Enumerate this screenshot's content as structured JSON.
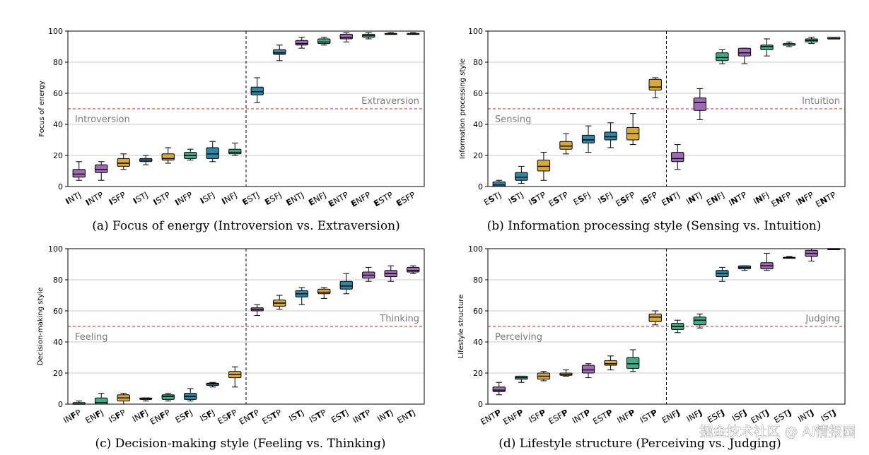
{
  "colors": {
    "Purple": "#9f6bb7",
    "Blue": "#2f86a2",
    "Gold": "#d9a938",
    "Green": "#3fae87",
    "threshold": "#e02020"
  },
  "watermark": "掘金技术社区 @ AI情报园",
  "chart_data": [
    {
      "type": "boxplot",
      "caption": "(a) Focus of energy (Introversion vs. Extraversion)",
      "ylabel": "Focus of energy",
      "ylim": [
        0,
        100
      ],
      "yticks": [
        0,
        20,
        40,
        60,
        80,
        100
      ],
      "grid": true,
      "threshold": 50,
      "low_label": "Introversion",
      "high_label": "Extraversion",
      "divider_after": 8,
      "bold_index": 0,
      "boxes": [
        {
          "label": "INTJ",
          "color": "Purple",
          "whislo": 4,
          "q1": 6,
          "med": 8,
          "q3": 11,
          "whishi": 16
        },
        {
          "label": "INTP",
          "color": "Purple",
          "whislo": 4,
          "q1": 9,
          "med": 11,
          "q3": 14,
          "whishi": 16
        },
        {
          "label": "ISFP",
          "color": "Gold",
          "whislo": 11,
          "q1": 13,
          "med": 15,
          "q3": 18,
          "whishi": 21
        },
        {
          "label": "ISTJ",
          "color": "Blue",
          "whislo": 14,
          "q1": 16,
          "med": 17,
          "q3": 18,
          "whishi": 20
        },
        {
          "label": "ISTP",
          "color": "Gold",
          "whislo": 15,
          "q1": 17,
          "med": 18,
          "q3": 21,
          "whishi": 25
        },
        {
          "label": "INFP",
          "color": "Green",
          "whislo": 17,
          "q1": 18,
          "med": 20,
          "q3": 22,
          "whishi": 24
        },
        {
          "label": "ISFJ",
          "color": "Blue",
          "whislo": 16,
          "q1": 18,
          "med": 21,
          "q3": 25,
          "whishi": 29
        },
        {
          "label": "INFJ",
          "color": "Green",
          "whislo": 20,
          "q1": 21,
          "med": 22,
          "q3": 24,
          "whishi": 28
        },
        {
          "label": "ESTJ",
          "color": "Blue",
          "whislo": 54,
          "q1": 59,
          "med": 61,
          "q3": 64,
          "whishi": 70
        },
        {
          "label": "ESFJ",
          "color": "Blue",
          "whislo": 81,
          "q1": 85,
          "med": 86,
          "q3": 88,
          "whishi": 91
        },
        {
          "label": "ENTJ",
          "color": "Purple",
          "whislo": 89,
          "q1": 91,
          "med": 92,
          "q3": 94,
          "whishi": 96
        },
        {
          "label": "ENFJ",
          "color": "Green",
          "whislo": 91,
          "q1": 92,
          "med": 93,
          "q3": 95,
          "whishi": 96
        },
        {
          "label": "ENTP",
          "color": "Purple",
          "whislo": 93,
          "q1": 95,
          "med": 96,
          "q3": 98,
          "whishi": 99
        },
        {
          "label": "ENFP",
          "color": "Green",
          "whislo": 95,
          "q1": 96,
          "med": 97,
          "q3": 98,
          "whishi": 99
        },
        {
          "label": "ESTP",
          "color": "Gold",
          "whislo": 98,
          "q1": 98,
          "med": 98,
          "q3": 98.5,
          "whishi": 99
        },
        {
          "label": "ESFP",
          "color": "Gold",
          "whislo": 98,
          "q1": 98,
          "med": 98,
          "q3": 98.5,
          "whishi": 99
        }
      ]
    },
    {
      "type": "boxplot",
      "caption": "(b) Information processing style (Sensing vs. Intuition)",
      "ylabel": "Information processing style",
      "ylim": [
        0,
        100
      ],
      "yticks": [
        0,
        20,
        40,
        60,
        80,
        100
      ],
      "grid": true,
      "threshold": 50,
      "low_label": "Sensing",
      "high_label": "Intuition",
      "divider_after": 8,
      "bold_index": 1,
      "boxes": [
        {
          "label": "ESTJ",
          "color": "Blue",
          "whislo": 0,
          "q1": 0,
          "med": 1,
          "q3": 3,
          "whishi": 4
        },
        {
          "label": "ISTJ",
          "color": "Blue",
          "whislo": 2,
          "q1": 4,
          "med": 6,
          "q3": 9,
          "whishi": 13
        },
        {
          "label": "ISTP",
          "color": "Gold",
          "whislo": 4,
          "q1": 10,
          "med": 13,
          "q3": 17,
          "whishi": 22
        },
        {
          "label": "ESTP",
          "color": "Gold",
          "whislo": 21,
          "q1": 24,
          "med": 26,
          "q3": 29,
          "whishi": 34
        },
        {
          "label": "ESFJ",
          "color": "Blue",
          "whislo": 22,
          "q1": 28,
          "med": 30,
          "q3": 33,
          "whishi": 39
        },
        {
          "label": "ISFJ",
          "color": "Blue",
          "whislo": 25,
          "q1": 30,
          "med": 32,
          "q3": 35,
          "whishi": 41
        },
        {
          "label": "ESFP",
          "color": "Gold",
          "whislo": 27,
          "q1": 30,
          "med": 34,
          "q3": 38,
          "whishi": 47
        },
        {
          "label": "ISFP",
          "color": "Gold",
          "whislo": 57,
          "q1": 62,
          "med": 64,
          "q3": 69,
          "whishi": 70
        },
        {
          "label": "ENTJ",
          "color": "Purple",
          "whislo": 11,
          "q1": 16,
          "med": 18,
          "q3": 22,
          "whishi": 27
        },
        {
          "label": "INTJ",
          "color": "Purple",
          "whislo": 43,
          "q1": 49,
          "med": 54,
          "q3": 57,
          "whishi": 63
        },
        {
          "label": "ENFJ",
          "color": "Green",
          "whislo": 79,
          "q1": 81,
          "med": 83,
          "q3": 86,
          "whishi": 88
        },
        {
          "label": "INTP",
          "color": "Purple",
          "whislo": 79,
          "q1": 84,
          "med": 86,
          "q3": 89,
          "whishi": 89
        },
        {
          "label": "INFJ",
          "color": "Green",
          "whislo": 84,
          "q1": 88,
          "med": 90,
          "q3": 91,
          "whishi": 95
        },
        {
          "label": "ENFP",
          "color": "Green",
          "whislo": 90,
          "q1": 91,
          "med": 91,
          "q3": 92,
          "whishi": 93
        },
        {
          "label": "INFP",
          "color": "Green",
          "whislo": 92,
          "q1": 93,
          "med": 94,
          "q3": 95,
          "whishi": 96
        },
        {
          "label": "ENTP",
          "color": "Purple",
          "whislo": 95,
          "q1": 95,
          "med": 95,
          "q3": 96,
          "whishi": 96
        }
      ]
    },
    {
      "type": "boxplot",
      "caption": "(c) Decision-making style (Feeling vs. Thinking)",
      "ylabel": "Decision-making style",
      "ylim": [
        0,
        100
      ],
      "yticks": [
        0,
        20,
        40,
        60,
        80,
        100
      ],
      "grid": true,
      "threshold": 50,
      "low_label": "Feeling",
      "high_label": "Thinking",
      "divider_after": 8,
      "bold_index": 2,
      "boxes": [
        {
          "label": "INFP",
          "color": "Green",
          "whislo": 0,
          "q1": 0,
          "med": 0,
          "q3": 1,
          "whishi": 2
        },
        {
          "label": "ENFJ",
          "color": "Green",
          "whislo": 0,
          "q1": 0,
          "med": 1,
          "q3": 4,
          "whishi": 7
        },
        {
          "label": "ISFP",
          "color": "Gold",
          "whislo": 0,
          "q1": 2,
          "med": 4,
          "q3": 6,
          "whishi": 7
        },
        {
          "label": "INFJ",
          "color": "Green",
          "whislo": 2,
          "q1": 3,
          "med": 3.5,
          "q3": 4,
          "whishi": 4
        },
        {
          "label": "ENFP",
          "color": "Green",
          "whislo": 2,
          "q1": 3,
          "med": 5,
          "q3": 6,
          "whishi": 7
        },
        {
          "label": "ESFJ",
          "color": "Blue",
          "whislo": 2,
          "q1": 3,
          "med": 5,
          "q3": 7,
          "whishi": 10
        },
        {
          "label": "ISFJ",
          "color": "Blue",
          "whislo": 11,
          "q1": 12,
          "med": 13,
          "q3": 13.5,
          "whishi": 14
        },
        {
          "label": "ESFP",
          "color": "Gold",
          "whislo": 11,
          "q1": 17,
          "med": 19,
          "q3": 21,
          "whishi": 24
        },
        {
          "label": "ENTP",
          "color": "Purple",
          "whislo": 57,
          "q1": 60,
          "med": 61,
          "q3": 62,
          "whishi": 64
        },
        {
          "label": "ESTP",
          "color": "Gold",
          "whislo": 61,
          "q1": 63,
          "med": 65,
          "q3": 67,
          "whishi": 70
        },
        {
          "label": "ISTJ",
          "color": "Blue",
          "whislo": 64,
          "q1": 69,
          "med": 71,
          "q3": 73,
          "whishi": 75
        },
        {
          "label": "ISTP",
          "color": "Gold",
          "whislo": 68,
          "q1": 71,
          "med": 72,
          "q3": 74,
          "whishi": 75
        },
        {
          "label": "ESTJ",
          "color": "Blue",
          "whislo": 71,
          "q1": 74,
          "med": 76,
          "q3": 79,
          "whishi": 84
        },
        {
          "label": "INTP",
          "color": "Purple",
          "whislo": 79,
          "q1": 81,
          "med": 83,
          "q3": 85,
          "whishi": 88
        },
        {
          "label": "INTJ",
          "color": "Purple",
          "whislo": 79,
          "q1": 82,
          "med": 84,
          "q3": 86,
          "whishi": 89
        },
        {
          "label": "ENTJ",
          "color": "Purple",
          "whislo": 84,
          "q1": 85,
          "med": 86,
          "q3": 88,
          "whishi": 89
        }
      ]
    },
    {
      "type": "boxplot",
      "caption": "(d) Lifestyle structure (Perceiving vs. Judging)",
      "ylabel": "Lifestyle structure",
      "ylim": [
        0,
        100
      ],
      "yticks": [
        0,
        20,
        40,
        60,
        80,
        100
      ],
      "grid": true,
      "threshold": 50,
      "low_label": "Perceiving",
      "high_label": "Judging",
      "divider_after": 8,
      "bold_index": 3,
      "boxes": [
        {
          "label": "ENTP",
          "color": "Purple",
          "whislo": 6,
          "q1": 8,
          "med": 9,
          "q3": 11,
          "whishi": 14
        },
        {
          "label": "ENFP",
          "color": "Green",
          "whislo": 14,
          "q1": 16,
          "med": 17,
          "q3": 18,
          "whishi": 18
        },
        {
          "label": "ISFP",
          "color": "Gold",
          "whislo": 15,
          "q1": 16,
          "med": 18,
          "q3": 20,
          "whishi": 21
        },
        {
          "label": "ESFP",
          "color": "Gold",
          "whislo": 18,
          "q1": 18.5,
          "med": 19,
          "q3": 20,
          "whishi": 22
        },
        {
          "label": "INTP",
          "color": "Purple",
          "whislo": 17,
          "q1": 20,
          "med": 22,
          "q3": 25,
          "whishi": 26
        },
        {
          "label": "ESTP",
          "color": "Gold",
          "whislo": 22,
          "q1": 25,
          "med": 26,
          "q3": 28,
          "whishi": 31
        },
        {
          "label": "INFP",
          "color": "Green",
          "whislo": 21,
          "q1": 23,
          "med": 26,
          "q3": 30,
          "whishi": 35
        },
        {
          "label": "ISTP",
          "color": "Gold",
          "whislo": 51,
          "q1": 53,
          "med": 56,
          "q3": 58,
          "whishi": 60
        },
        {
          "label": "ENFJ",
          "color": "Green",
          "whislo": 46,
          "q1": 48,
          "med": 50,
          "q3": 52,
          "whishi": 54
        },
        {
          "label": "INFJ",
          "color": "Green",
          "whislo": 49,
          "q1": 51,
          "med": 54,
          "q3": 56,
          "whishi": 58
        },
        {
          "label": "ESFJ",
          "color": "Blue",
          "whislo": 79,
          "q1": 82,
          "med": 84,
          "q3": 86,
          "whishi": 88
        },
        {
          "label": "ISFJ",
          "color": "Blue",
          "whislo": 86,
          "q1": 87,
          "med": 88,
          "q3": 89,
          "whishi": 89
        },
        {
          "label": "ENTJ",
          "color": "Purple",
          "whislo": 86,
          "q1": 87,
          "med": 89,
          "q3": 91,
          "whishi": 97
        },
        {
          "label": "ESTJ",
          "color": "Blue",
          "whislo": 94,
          "q1": 94,
          "med": 94,
          "q3": 94.5,
          "whishi": 95
        },
        {
          "label": "INTJ",
          "color": "Purple",
          "whislo": 92,
          "q1": 95,
          "med": 97,
          "q3": 99,
          "whishi": 100
        },
        {
          "label": "ISTJ",
          "color": "Blue",
          "whislo": 100,
          "q1": 100,
          "med": 100,
          "q3": 100,
          "whishi": 100
        }
      ]
    }
  ]
}
